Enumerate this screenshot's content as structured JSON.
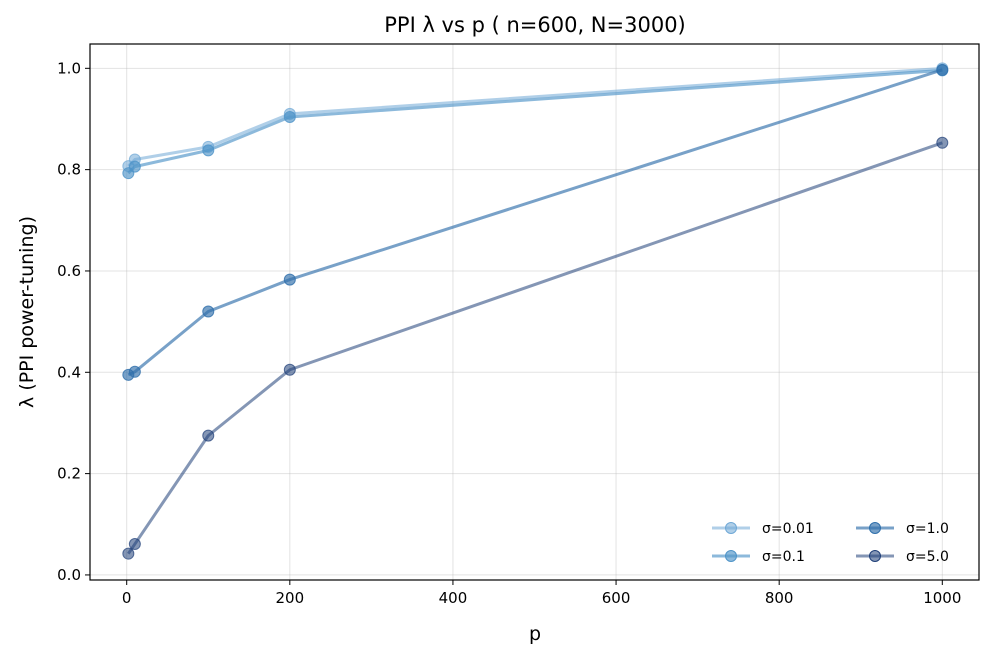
{
  "chart_data": {
    "type": "line",
    "title": "PPI λ vs p  ( n=600, N=3000)",
    "xlabel": "p",
    "ylabel": "λ (PPI power-tuning)",
    "xlim": [
      -45,
      1045
    ],
    "ylim": [
      -0.01,
      1.048
    ],
    "xticks": [
      0,
      200,
      400,
      600,
      800,
      1000
    ],
    "xtick_labels": [
      "0",
      "200",
      "400",
      "600",
      "800",
      "1000"
    ],
    "yticks": [
      0.0,
      0.2,
      0.4,
      0.6,
      0.8,
      1.0
    ],
    "ytick_labels": [
      "0.0",
      "0.2",
      "0.4",
      "0.6",
      "0.8",
      "1.0"
    ],
    "grid": true,
    "legend": {
      "position": "lower-right",
      "columns": 2
    },
    "x": [
      2,
      10,
      100,
      200,
      1000
    ],
    "series": [
      {
        "name": "σ=0.01",
        "values": [
          0.807,
          0.82,
          0.845,
          0.91,
          1.0
        ],
        "color": "#6fa8d6",
        "alpha": 0.55
      },
      {
        "name": "σ=0.1",
        "values": [
          0.793,
          0.806,
          0.838,
          0.904,
          0.996
        ],
        "color": "#4f94c8",
        "alpha": 0.65
      },
      {
        "name": "σ=1.0",
        "values": [
          0.395,
          0.401,
          0.52,
          0.583,
          0.997
        ],
        "color": "#2f6fab",
        "alpha": 0.65
      },
      {
        "name": "σ=5.0",
        "values": [
          0.042,
          0.061,
          0.275,
          0.405,
          0.853
        ],
        "color": "#1f3f78",
        "alpha": 0.55
      }
    ]
  }
}
